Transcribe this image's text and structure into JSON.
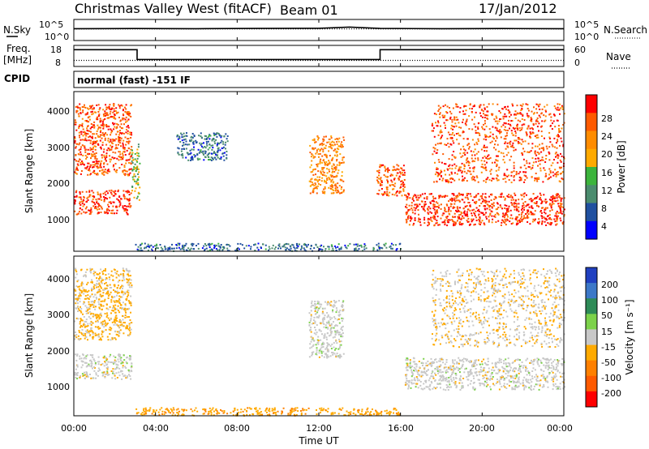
{
  "header": {
    "station": "Christmas Valley West (fitACF)",
    "beam": "Beam 01",
    "date": "17/Jan/2012"
  },
  "top_panels": {
    "nsky_label": "N.Sky",
    "nsearch_label": "N.Search",
    "noise_ticks": [
      "10^5",
      "10^0"
    ],
    "freq_label_1": "Freq.",
    "freq_label_2": "[MHz]",
    "freq_ticks": [
      "18",
      "8"
    ],
    "nave_label": "Nave",
    "nave_ticks": [
      "60",
      "0"
    ],
    "cpid_label": "CPID",
    "cpid_text": "normal (fast) -151 IF"
  },
  "axes": {
    "xlabel": "Time UT",
    "x_ticks": [
      "00:00",
      "04:00",
      "08:00",
      "12:00",
      "16:00",
      "20:00",
      "00:00"
    ],
    "ylabel": "Slant Range [km]",
    "y_ticks": [
      "1000",
      "2000",
      "3000",
      "4000"
    ]
  },
  "colorbars": {
    "power_label": "Power [dB]",
    "power_ticks": [
      "28",
      "24",
      "20",
      "16",
      "12",
      "8",
      "4"
    ],
    "power_colors": [
      "#ff0000",
      "#ff5a00",
      "#ff8c00",
      "#ffaa00",
      "#3cb43c",
      "#4b8c6e",
      "#2050a0",
      "#0000ff"
    ],
    "velocity_label": "Velocity [m s⁻¹]",
    "velocity_ticks": [
      "200",
      "100",
      "50",
      "15",
      "-15",
      "-50",
      "-100",
      "-200"
    ],
    "velocity_colors": [
      "#2040c0",
      "#3c78c8",
      "#2e8b57",
      "#7cd24a",
      "#c8c8c8",
      "#ffaa00",
      "#ff8000",
      "#ff5a00",
      "#ff0000"
    ]
  },
  "chart_data": [
    {
      "type": "line",
      "title": "Christmas Valley West (fitACF)",
      "x_ticks": [
        "00:00",
        "04:00",
        "08:00",
        "12:00",
        "16:00",
        "20:00",
        "00:00"
      ],
      "xlim_hours": [
        0,
        24
      ],
      "series": [
        {
          "name": "N.Sky",
          "x": [
            0,
            3,
            6,
            9,
            12,
            13.5,
            15,
            18,
            21,
            24
          ],
          "y": [
            1000,
            1100,
            1000,
            1200,
            1300,
            3000,
            1200,
            1000,
            1100,
            1000
          ]
        },
        {
          "name": "N.Search",
          "x": [
            0,
            6,
            12,
            18,
            24
          ],
          "y": [
            800,
            800,
            850,
            800,
            800
          ]
        }
      ],
      "y_scale": "log",
      "ylim": [
        1,
        100000
      ]
    },
    {
      "type": "line",
      "x_ticks": [
        "00:00",
        "04:00",
        "08:00",
        "12:00",
        "16:00",
        "20:00",
        "00:00"
      ],
      "xlim_hours": [
        0,
        24
      ],
      "series": [
        {
          "name": "Freq.",
          "x": [
            0,
            3.1,
            3.1,
            15,
            15,
            24
          ],
          "y": [
            16.5,
            16.5,
            11,
            11,
            16.5,
            16.5
          ]
        },
        {
          "name": "Nave",
          "x": [
            0,
            24
          ],
          "y": [
            15,
            15
          ]
        }
      ],
      "ylim": [
        8,
        18
      ],
      "y2lim": [
        0,
        60
      ]
    },
    {
      "type": "heatmap",
      "quantity": "Power [dB]",
      "x_ticks": [
        "00:00",
        "04:00",
        "08:00",
        "12:00",
        "16:00",
        "20:00",
        "00:00"
      ],
      "xlim_hours": [
        0,
        24
      ],
      "ylim_km": [
        180,
        4600
      ],
      "y_ticks": [
        1000,
        2000,
        3000,
        4000
      ],
      "color_range": [
        0,
        30
      ],
      "features": [
        {
          "t_start": 0.0,
          "t_end": 2.8,
          "range_start_km": 1200,
          "range_end_km": 1900,
          "power_db": 28
        },
        {
          "t_start": 0.0,
          "t_end": 2.8,
          "range_start_km": 2300,
          "range_end_km": 4300,
          "power_db": 26
        },
        {
          "t_start": 2.8,
          "t_end": 3.2,
          "range_start_km": 1600,
          "range_end_km": 3200,
          "power_db": 14
        },
        {
          "t_start": 5.0,
          "t_end": 7.5,
          "range_start_km": 2700,
          "range_end_km": 3500,
          "power_db": 6
        },
        {
          "t_start": 11.5,
          "t_end": 13.2,
          "range_start_km": 1800,
          "range_end_km": 3400,
          "power_db": 22
        },
        {
          "t_start": 14.8,
          "t_end": 16.2,
          "range_start_km": 1700,
          "range_end_km": 2600,
          "power_db": 26
        },
        {
          "t_start": 16.2,
          "t_end": 24.0,
          "range_start_km": 900,
          "range_end_km": 1800,
          "power_db": 28
        },
        {
          "t_start": 17.5,
          "t_end": 24.0,
          "range_start_km": 2100,
          "range_end_km": 4300,
          "power_db": 26
        },
        {
          "t_start": 3.0,
          "t_end": 16.0,
          "range_start_km": 180,
          "range_end_km": 400,
          "power_db": 6
        }
      ]
    },
    {
      "type": "heatmap",
      "quantity": "Velocity [m s-1]",
      "x_ticks": [
        "00:00",
        "04:00",
        "08:00",
        "12:00",
        "16:00",
        "20:00",
        "00:00"
      ],
      "xlim_hours": [
        0,
        24
      ],
      "ylim_km": [
        180,
        4600
      ],
      "y_ticks": [
        1000,
        2000,
        3000,
        4000
      ],
      "color_range": [
        -200,
        200
      ],
      "features": [
        {
          "t_start": 0.0,
          "t_end": 2.8,
          "range_start_km": 1200,
          "range_end_km": 1900,
          "velocity": 0
        },
        {
          "t_start": 0.0,
          "t_end": 2.8,
          "range_start_km": 2300,
          "range_end_km": 4300,
          "velocity": -40
        },
        {
          "t_start": 11.5,
          "t_end": 13.2,
          "range_start_km": 1800,
          "range_end_km": 3400,
          "velocity": 0
        },
        {
          "t_start": 16.2,
          "t_end": 24.0,
          "range_start_km": 900,
          "range_end_km": 1800,
          "velocity": 0
        },
        {
          "t_start": 17.5,
          "t_end": 24.0,
          "range_start_km": 2100,
          "range_end_km": 4300,
          "velocity": -20
        },
        {
          "t_start": 3.0,
          "t_end": 16.0,
          "range_start_km": 180,
          "range_end_km": 400,
          "velocity": -60
        }
      ]
    }
  ]
}
